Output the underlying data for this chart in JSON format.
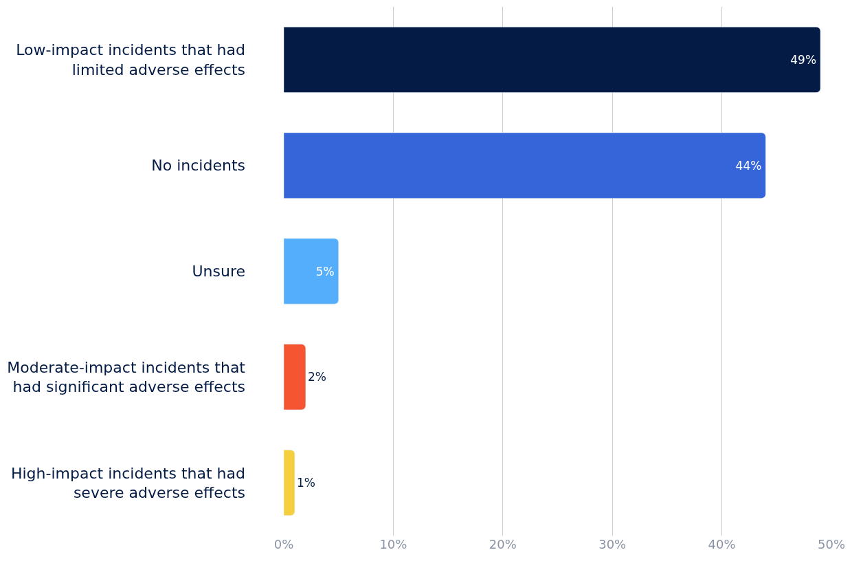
{
  "chart_data": {
    "type": "bar",
    "orientation": "horizontal",
    "categories": [
      "Low-impact incidents that had limited adverse effects",
      "No incidents",
      "Unsure",
      "Moderate-impact incidents that had significant adverse effects",
      "High-impact incidents that had severe adverse effects"
    ],
    "values": [
      49,
      44,
      5,
      2,
      1
    ],
    "colors": [
      "#031b45",
      "#3565d9",
      "#55aefc",
      "#f65532",
      "#f6cf3f"
    ],
    "value_labels": [
      "49%",
      "44%",
      "5%",
      "2%",
      "1%"
    ],
    "xlim": [
      0,
      50
    ],
    "xticks": [
      {
        "value": 0,
        "label": "0%"
      },
      {
        "value": 10,
        "label": "10%"
      },
      {
        "value": 20,
        "label": "20%"
      },
      {
        "value": 30,
        "label": "30%"
      },
      {
        "value": 40,
        "label": "40%"
      },
      {
        "value": 50,
        "label": "50%"
      }
    ],
    "grid": "x",
    "legend": false
  }
}
